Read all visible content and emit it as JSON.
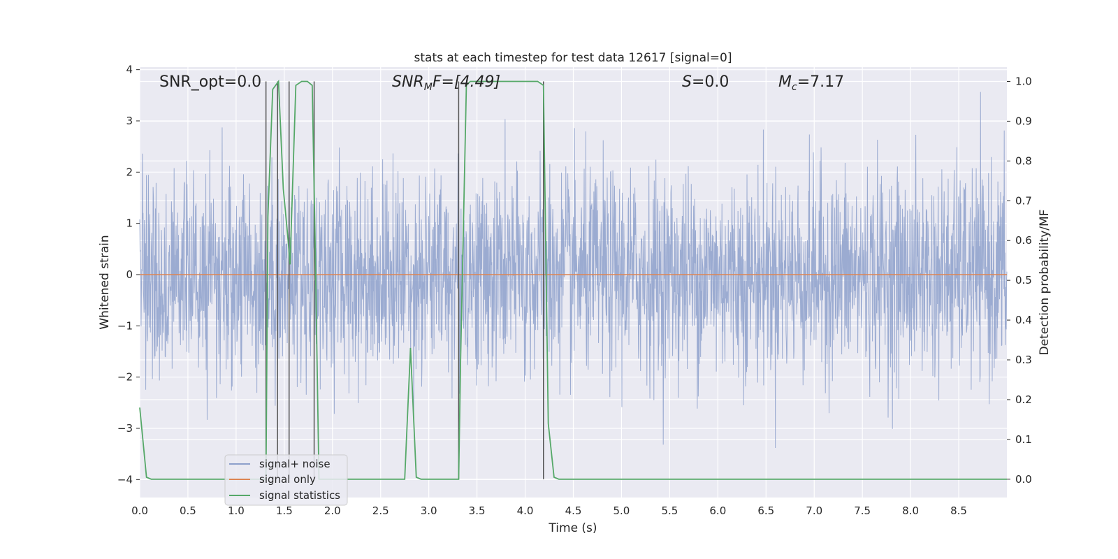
{
  "chart_data": {
    "type": "line",
    "title": "stats at each timestep for test data 12617 [signal=0]",
    "xlabel": "Time (s)",
    "ylabel_left": "Whitened strain",
    "ylabel_right": "Detection probability/MF",
    "xlim": [
      0.0,
      9.0
    ],
    "ylim_left": [
      -4.35,
      4.05
    ],
    "ylim_right": [
      -0.046,
      1.036
    ],
    "x_ticks": [
      "0.0",
      "0.5",
      "1.0",
      "1.5",
      "2.0",
      "2.5",
      "3.0",
      "3.5",
      "4.0",
      "4.5",
      "5.0",
      "5.5",
      "6.0",
      "6.5",
      "7.0",
      "7.5",
      "8.0",
      "8.5"
    ],
    "y_ticks_left": [
      "4",
      "3",
      "2",
      "1",
      "0",
      "−1",
      "−2",
      "−3",
      "−4"
    ],
    "y_ticks_right": [
      "1.0",
      "0.9",
      "0.8",
      "0.7",
      "0.6",
      "0.5",
      "0.4",
      "0.3",
      "0.2",
      "0.1",
      "0.0"
    ],
    "grid": true,
    "legend_position": "lower-left",
    "annotations": {
      "snr_opt": "SNR_opt=0.0",
      "snr_mf_main": "SNR",
      "snr_mf_sub": "M",
      "snr_mf_rest": "F=[4.49]",
      "s_italic": "S",
      "s_rest": "=0.0",
      "mc_italic": "M",
      "mc_sub": "c",
      "mc_rest": "=7.17"
    },
    "series": [
      {
        "name": "signal+ noise",
        "color": "#8da0cb",
        "description_values": "whitened strain noise ~N(0,1), range approx -3.7 to 3.7"
      },
      {
        "name": "signal only",
        "color": "#dd8452",
        "x": [
          0.0,
          9.0
        ],
        "y": [
          0.0,
          0.0
        ]
      },
      {
        "name": "signal statistics",
        "color": "#55a868",
        "x": [
          0.0,
          0.07,
          0.12,
          1.25,
          1.31,
          1.33,
          1.38,
          1.44,
          1.49,
          1.54,
          1.56,
          1.62,
          1.68,
          1.74,
          1.79,
          1.82,
          1.86,
          2.75,
          2.81,
          2.87,
          2.92,
          3.31,
          3.33,
          3.39,
          3.43,
          4.13,
          4.19,
          4.24,
          4.3,
          4.35,
          9.0
        ],
        "y": [
          0.18,
          0.005,
          0.0,
          0.0,
          0.0,
          0.66,
          0.98,
          1.0,
          0.73,
          0.6,
          0.54,
          0.99,
          1.0,
          1.0,
          0.99,
          0.6,
          0.0,
          0.0,
          0.33,
          0.005,
          0.0,
          0.0,
          0.3,
          0.99,
          1.0,
          1.0,
          0.99,
          0.14,
          0.005,
          0.0,
          0.0
        ]
      }
    ],
    "vertical_lines_x": [
      1.31,
      1.43,
      1.55,
      1.81,
      3.31,
      4.19
    ],
    "vertical_lines_color": "#555555"
  }
}
